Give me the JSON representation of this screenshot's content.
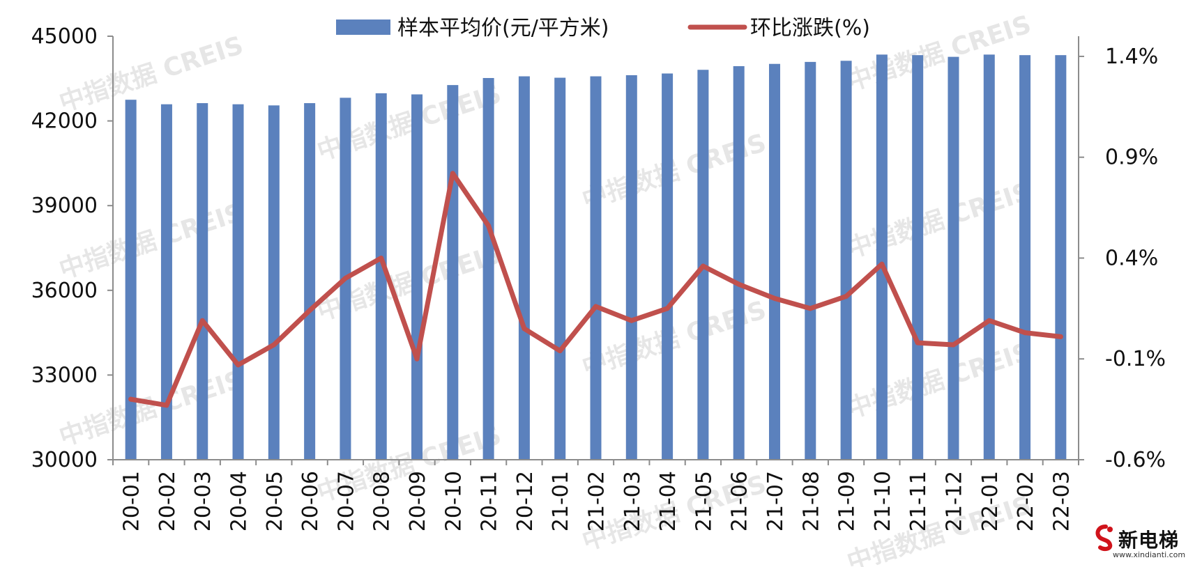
{
  "chart_data": {
    "type": "bar",
    "categories": [
      "20-01",
      "20-02",
      "20-03",
      "20-04",
      "20-05",
      "20-06",
      "20-07",
      "20-08",
      "20-09",
      "20-10",
      "20-11",
      "20-12",
      "21-01",
      "21-02",
      "21-03",
      "21-04",
      "21-05",
      "21-06",
      "21-07",
      "21-08",
      "21-09",
      "21-10",
      "21-11",
      "21-12",
      "22-01",
      "22-02",
      "22-03"
    ],
    "series": [
      {
        "name": "样本平均价(元/平方米)",
        "type": "bar",
        "axis": "left",
        "color": "#5b81bd",
        "values": [
          42750,
          42590,
          42630,
          42590,
          42550,
          42630,
          42820,
          42980,
          42940,
          43270,
          43520,
          43580,
          43530,
          43580,
          43620,
          43680,
          43810,
          43940,
          44020,
          44090,
          44130,
          44350,
          44330,
          44270,
          44350,
          44330,
          44330
        ]
      },
      {
        "name": "环比涨跌(%)",
        "type": "line",
        "axis": "right",
        "color": "#c0504d",
        "values": [
          -0.3,
          -0.33,
          0.09,
          -0.13,
          -0.03,
          0.14,
          0.3,
          0.4,
          -0.1,
          0.82,
          0.56,
          0.05,
          -0.06,
          0.16,
          0.09,
          0.15,
          0.36,
          0.27,
          0.2,
          0.15,
          0.21,
          0.37,
          -0.02,
          -0.03,
          0.09,
          0.03,
          0.01
        ]
      }
    ],
    "left_axis": {
      "ylim": [
        30000,
        45000
      ],
      "ticks": [
        "45000",
        "42000",
        "39000",
        "36000",
        "33000",
        "30000"
      ]
    },
    "right_axis": {
      "ylim": [
        -0.6,
        1.5
      ],
      "ticks": [
        "1.4%",
        "0.9%",
        "0.4%",
        "-0.1%",
        "-0.6%"
      ]
    },
    "legend_position": "top",
    "grid": false
  },
  "watermark": "中指数据 CREIS",
  "logo": {
    "brand": "新电梯",
    "url": "www.xindianti.com"
  }
}
